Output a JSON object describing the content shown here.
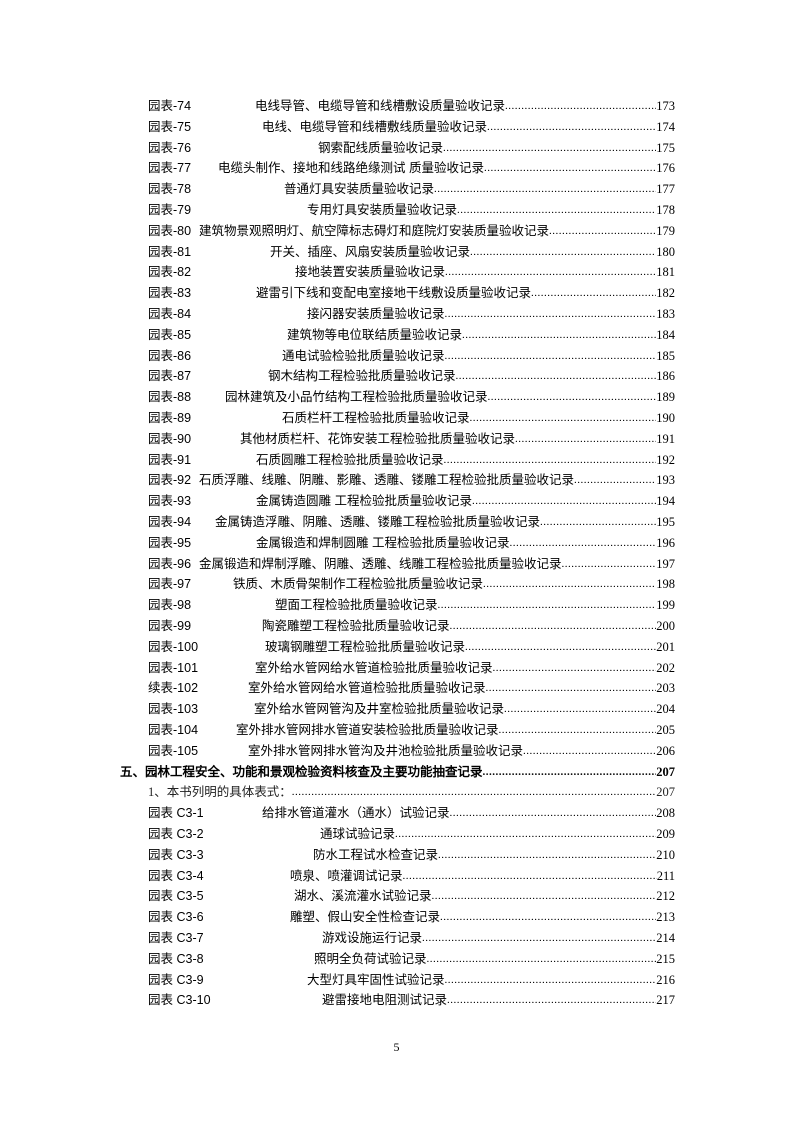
{
  "entries": [
    {
      "label": "园表-74",
      "title": "电线导管、电缆导管和线槽敷设质量验收记录",
      "page": "173"
    },
    {
      "label": "园表-75",
      "title": "电线、电缆导管和线槽敷线质量验收记录",
      "page": "174"
    },
    {
      "label": "园表-76",
      "title": "钢索配线质量验收记录",
      "page": "175"
    },
    {
      "label": "园表-77",
      "title": "电缆头制作、接地和线路绝缘测试 质量验收记录",
      "page": "176"
    },
    {
      "label": "园表-78",
      "title": "普通灯具安装质量验收记录",
      "page": "177"
    },
    {
      "label": "园表-79",
      "title": "专用灯具安装质量验收记录",
      "page": "178"
    },
    {
      "label": "园表-80",
      "title": "建筑物景观照明灯、航空障标志碍灯和庭院灯安装质量验收记录",
      "page": "179"
    },
    {
      "label": "园表-81",
      "title": "开关、插座、风扇安装质量验收记录",
      "page": "180"
    },
    {
      "label": "园表-82",
      "title": "接地装置安装质量验收记录",
      "page": "181"
    },
    {
      "label": "园表-83",
      "title": "避雷引下线和变配电室接地干线敷设质量验收记录",
      "page": "182"
    },
    {
      "label": "园表-84",
      "title": "接闪器安装质量验收记录",
      "page": "183"
    },
    {
      "label": "园表-85",
      "title": "建筑物等电位联结质量验收记录",
      "page": "184"
    },
    {
      "label": "园表-86",
      "title": "通电试验检验批质量验收记录",
      "page": "185"
    },
    {
      "label": "园表-87",
      "title": "钢木结构工程检验批质量验收记录",
      "page": "186"
    },
    {
      "label": "园表-88",
      "title": "园林建筑及小品竹结构工程检验批质量验收记录",
      "page": "189"
    },
    {
      "label": "园表-89",
      "title": "石质栏杆工程检验批质量验收记录",
      "page": "190"
    },
    {
      "label": "园表-90",
      "title": "其他材质栏杆、花饰安装工程检验批质量验收记录",
      "page": "191"
    },
    {
      "label": "园表-91",
      "title": "石质圆雕工程检验批质量验收记录",
      "page": "192"
    },
    {
      "label": "园表-92",
      "title": "石质浮雕、线雕、阴雕、影雕、透雕、镂雕工程检验批质量验收记录",
      "page": "193"
    },
    {
      "label": "园表-93",
      "title": "金属铸造圆雕 工程检验批质量验收记录",
      "page": "194"
    },
    {
      "label": "园表-94",
      "title": "金属铸造浮雕、阴雕、透雕、镂雕工程检验批质量验收记录",
      "page": "195"
    },
    {
      "label": "园表-95",
      "title": "金属锻造和焊制圆雕 工程检验批质量验收记录",
      "page": "196"
    },
    {
      "label": "园表-96",
      "title": "金属锻造和焊制浮雕、阴雕、透雕、线雕工程检验批质量验收记录",
      "page": "197"
    },
    {
      "label": "园表-97",
      "title": "铁质、木质骨架制作工程检验批质量验收记录",
      "page": "198"
    },
    {
      "label": "园表-98",
      "title": "塑面工程检验批质量验收记录",
      "page": "199"
    },
    {
      "label": "园表-99",
      "title": "陶瓷雕塑工程检验批质量验收记录",
      "page": "200"
    },
    {
      "label": "园表-100",
      "title": "玻璃钢雕塑工程检验批质量验收记录",
      "page": "201"
    },
    {
      "label": "园表-101",
      "title": "室外给水管网给水管道检验批质量验收记录",
      "page": "202"
    },
    {
      "label": "续表-102",
      "title": "室外给水管网给水管道检验批质量验收记录",
      "page": "203"
    },
    {
      "label": "园表-103",
      "title": "室外给水管网管沟及井室检验批质量验收记录",
      "page": "204"
    },
    {
      "label": "园表-104",
      "title": "室外排水管网排水管道安装检验批质量验收记录",
      "page": "205"
    },
    {
      "label": "园表-105",
      "title": "室外排水管网排水管沟及井池检验批质量验收记录",
      "page": "206"
    }
  ],
  "section": {
    "title": "五、园林工程安全、功能和景观检验资料核查及主要功能抽查记录",
    "page": "207"
  },
  "subsection": {
    "title": "1、本书列明的具体表式：",
    "page": "207"
  },
  "c3_entries": [
    {
      "label": "园表 C3-1",
      "title": "给排水管道灌水（通水）试验记录",
      "page": "208"
    },
    {
      "label": "园表 C3-2",
      "title": "通球试验记录",
      "page": "209"
    },
    {
      "label": "园表 C3-3",
      "title": "防水工程试水检查记录",
      "page": "210"
    },
    {
      "label": "园表 C3-4",
      "title": "喷泉、喷灌调试记录",
      "page": "211"
    },
    {
      "label": "园表 C3-5",
      "title": "湖水、溪流灌水试验记录",
      "page": "212"
    },
    {
      "label": "园表 C3-6",
      "title": "雕塑、假山安全性检查记录",
      "page": "213"
    },
    {
      "label": "园表 C3-7",
      "title": "游戏设施运行记录",
      "page": "214"
    },
    {
      "label": "园表 C3-8",
      "title": "照明全负荷试验记录",
      "page": "215"
    },
    {
      "label": "园表 C3-9",
      "title": "大型灯具牢固性试验记录",
      "page": "216"
    },
    {
      "label": "园表 C3-10",
      "title": "避雷接地电阻测试记录",
      "page": "217"
    }
  ],
  "page_number": "5"
}
